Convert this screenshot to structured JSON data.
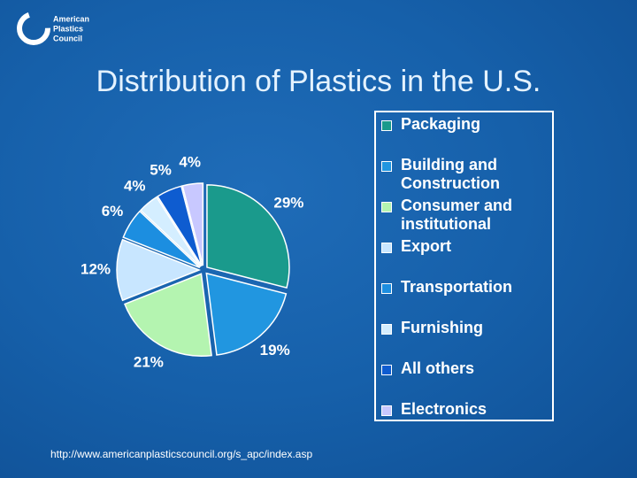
{
  "logo": {
    "lines": [
      "American",
      "Plastics",
      "Council"
    ]
  },
  "chart_data": {
    "type": "pie",
    "title": "Distribution of Plastics in the U.S.",
    "categories": [
      "Packaging",
      "Building and Construction",
      "Consumer and institutional",
      "Export",
      "Transportation",
      "Furnishing",
      "All others",
      "Electronics"
    ],
    "values": [
      29,
      19,
      21,
      12,
      6,
      4,
      5,
      4
    ],
    "value_labels": [
      "29%",
      "19%",
      "21%",
      "12%",
      "6%",
      "4%",
      "5%",
      "4%"
    ],
    "colors": [
      "#1a9a8c",
      "#2196e0",
      "#b4f4b0",
      "#c8e6ff",
      "#1c8ee0",
      "#d4eeff",
      "#0e5cd0",
      "#c8c8ff"
    ],
    "legend": "right"
  },
  "footer": "http://www.americanplasticscouncil.org/s_apc/index.asp"
}
